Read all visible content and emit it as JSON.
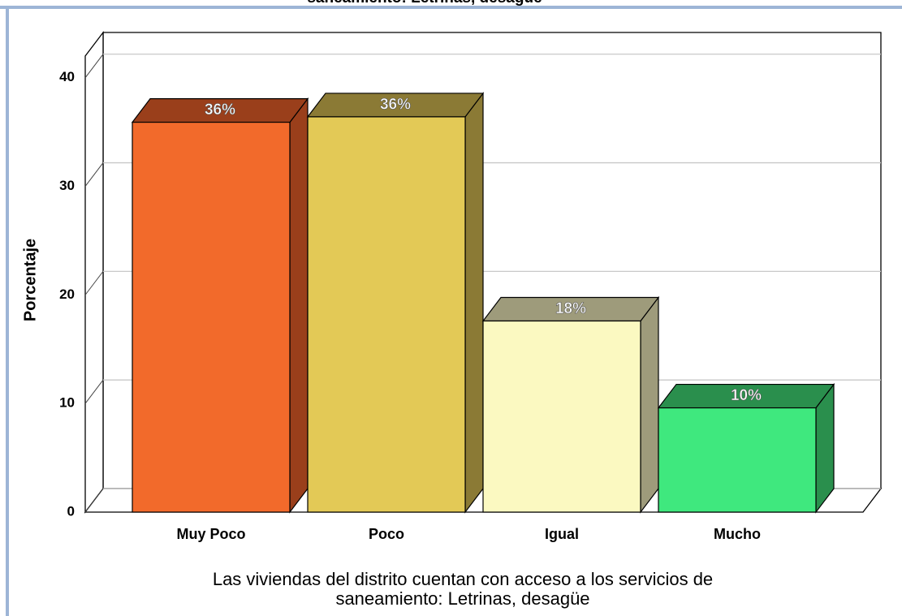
{
  "chart_data": {
    "type": "bar3d",
    "title": "saneamiento: Letrinas, desagüe",
    "ylabel": "Porcentaje",
    "xlabel": [
      "Las viviendas del distrito cuentan con acceso a los servicios de",
      "saneamiento: Letrinas, desagüe"
    ],
    "categories": [
      "Muy Poco",
      "Poco",
      "Igual",
      "Mucho"
    ],
    "values": [
      35.9,
      36.4,
      17.6,
      9.6
    ],
    "value_labels": [
      "36%",
      "36%",
      "18%",
      "10%"
    ],
    "colors": [
      "#f26a2b",
      "#e3c956",
      "#fbf9c1",
      "#3fe87e"
    ],
    "side_colors": [
      "#9a3f1b",
      "#8b7a35",
      "#9e9b7b",
      "#2a8f4d"
    ],
    "ylim": [
      0,
      42
    ],
    "yticks": [
      0,
      10,
      20,
      30,
      40
    ],
    "grid": true
  }
}
